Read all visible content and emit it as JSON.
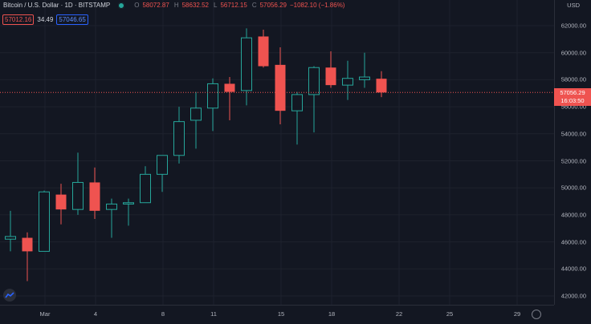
{
  "legend": {
    "symbol": "Bitcoin / U.S. Dollar · 1D · BITSTAMP",
    "open_key": "O",
    "open": "58072.87",
    "high_key": "H",
    "high": "58632.52",
    "low_key": "L",
    "low": "56712.15",
    "close_key": "C",
    "close": "57056.29",
    "change": "−1082.10 (−1.86%)",
    "bid": "57012.16",
    "spread": "34.49",
    "ask": "57046.65"
  },
  "price_axis": {
    "currency": "USD",
    "labels": [
      "62000.00",
      "60000.00",
      "58000.00",
      "56000.00",
      "54000.00",
      "52000.00",
      "50000.00",
      "48000.00",
      "46000.00",
      "44000.00",
      "42000.00"
    ],
    "last_price": "57056.29",
    "countdown": "16:03:50"
  },
  "time_axis": {
    "labels": [
      "Mar",
      "4",
      "8",
      "11",
      "15",
      "18",
      "22",
      "25",
      "29"
    ]
  },
  "colors": {
    "up": "#26a69a",
    "down": "#ef5350",
    "background": "#131722"
  },
  "chart_data": {
    "type": "candlestick",
    "series": [
      {
        "candles": [
          {
            "o": 46200,
            "h": 48300,
            "l": 45300,
            "c": 46400
          },
          {
            "o": 46300,
            "h": 46700,
            "l": 43100,
            "c": 45300
          },
          {
            "o": 45300,
            "h": 49800,
            "l": 45300,
            "c": 49700
          },
          {
            "o": 49500,
            "h": 50300,
            "l": 47300,
            "c": 48400
          },
          {
            "o": 48400,
            "h": 52600,
            "l": 48000,
            "c": 50400
          },
          {
            "o": 50400,
            "h": 51500,
            "l": 47700,
            "c": 48300
          },
          {
            "o": 48400,
            "h": 49200,
            "l": 46300,
            "c": 48800
          },
          {
            "o": 48800,
            "h": 49200,
            "l": 47200,
            "c": 48900
          },
          {
            "o": 48900,
            "h": 51600,
            "l": 48900,
            "c": 51000
          },
          {
            "o": 51000,
            "h": 52400,
            "l": 49700,
            "c": 52400
          },
          {
            "o": 52400,
            "h": 56000,
            "l": 51800,
            "c": 54900
          },
          {
            "o": 55000,
            "h": 57100,
            "l": 52900,
            "c": 55900
          },
          {
            "o": 55900,
            "h": 58100,
            "l": 54200,
            "c": 57700
          },
          {
            "o": 57700,
            "h": 58200,
            "l": 55000,
            "c": 57100
          },
          {
            "o": 57200,
            "h": 61800,
            "l": 56100,
            "c": 61100
          },
          {
            "o": 61200,
            "h": 61700,
            "l": 58900,
            "c": 59000
          },
          {
            "o": 59100,
            "h": 60400,
            "l": 54700,
            "c": 55700
          },
          {
            "o": 55700,
            "h": 57100,
            "l": 53200,
            "c": 56900
          },
          {
            "o": 56900,
            "h": 59000,
            "l": 54100,
            "c": 58900
          },
          {
            "o": 58900,
            "h": 60100,
            "l": 57400,
            "c": 57600
          },
          {
            "o": 57600,
            "h": 59400,
            "l": 56500,
            "c": 58100
          },
          {
            "o": 58000,
            "h": 60000,
            "l": 57400,
            "c": 58200
          },
          {
            "o": 58073,
            "h": 58633,
            "l": 56712,
            "c": 57056
          }
        ]
      }
    ],
    "ylim": [
      41000,
      63500
    ]
  }
}
